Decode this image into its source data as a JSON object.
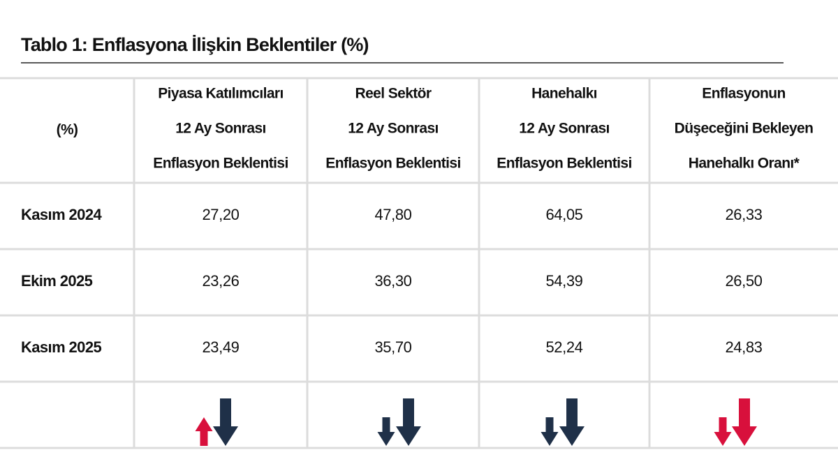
{
  "title": "Tablo 1: Enflasyona İlişkin Beklentiler (%)",
  "table": {
    "header": [
      [
        "(%)"
      ],
      [
        "Piyasa Katılımcıları",
        "12 Ay Sonrası",
        "Enflasyon Beklentisi"
      ],
      [
        "Reel Sektör",
        "12 Ay Sonrası",
        "Enflasyon Beklentisi"
      ],
      [
        "Hanehalkı",
        "12 Ay Sonrası",
        "Enflasyon Beklentisi"
      ],
      [
        "Enflasyonun",
        "Düşeceğini Bekleyen",
        "Hanehalkı Oranı*"
      ]
    ],
    "rows": [
      [
        "Kasım 2024",
        "27,20",
        "47,80",
        "64,05",
        "26,33"
      ],
      [
        "Ekim 2025",
        "23,26",
        "36,30",
        "54,39",
        "26,50"
      ],
      [
        "Kasım 2025",
        "23,49",
        "35,70",
        "52,24",
        "24,83"
      ]
    ]
  }
}
